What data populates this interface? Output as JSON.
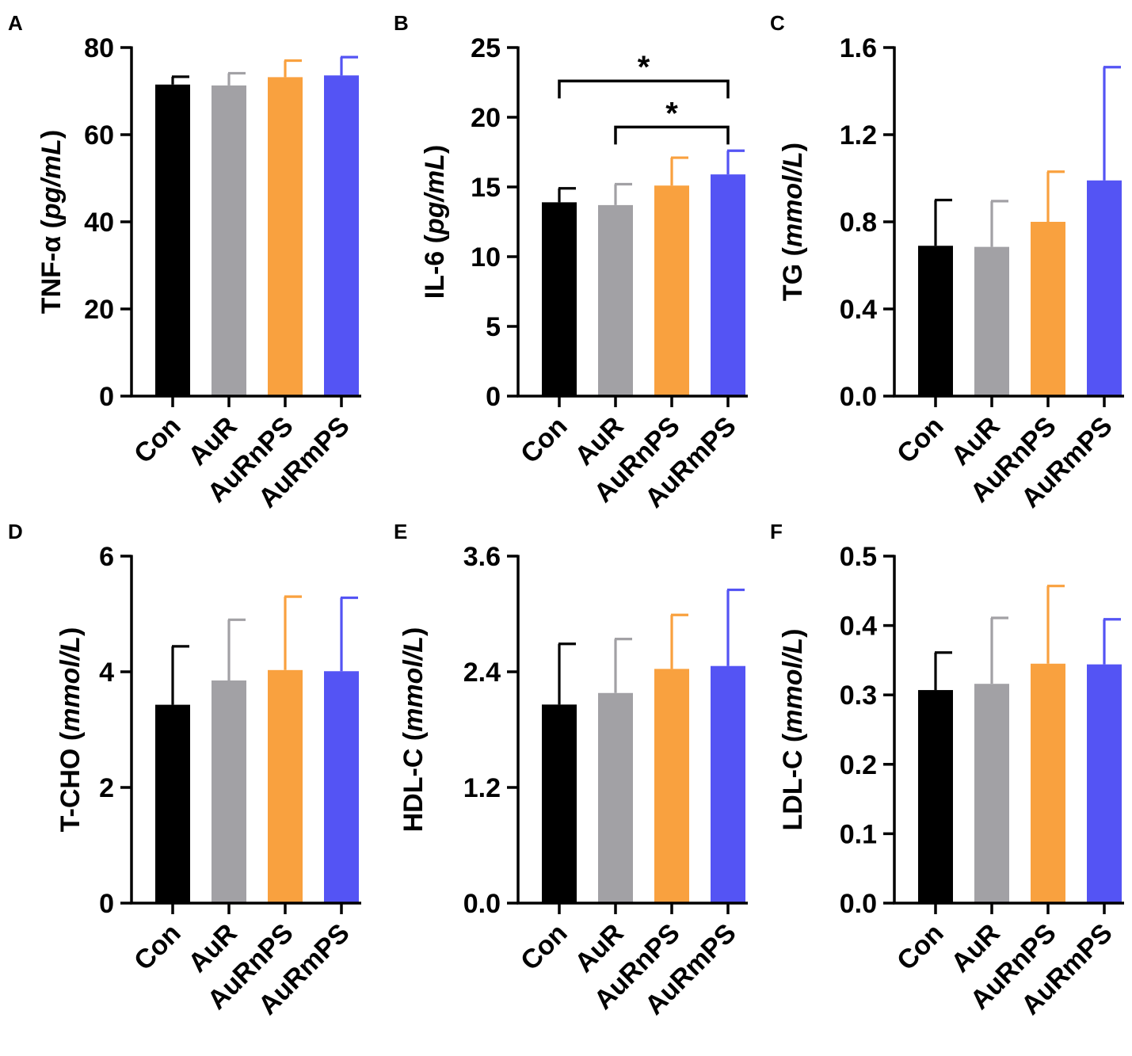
{
  "figure": {
    "categories": [
      "Con",
      "AuR",
      "AuRnPS",
      "AuRmPS"
    ],
    "colors": {
      "Con": "#000000",
      "AuR": "#a2a1a5",
      "AuRnPS": "#f9a13f",
      "AuRmPS": "#5454f4"
    }
  },
  "chart_data": [
    {
      "type": "bar",
      "panel": "A",
      "ylabel_main": "TNF-α",
      "ylabel_unit": "pg/mL",
      "categories": [
        "Con",
        "AuR",
        "AuRnPS",
        "AuRmPS"
      ],
      "values": [
        71.5,
        71.3,
        73.2,
        73.6
      ],
      "errors": [
        1.8,
        2.8,
        3.8,
        4.2
      ],
      "ylim": [
        0,
        80
      ],
      "yticks": [
        0,
        20,
        40,
        60,
        80
      ],
      "ytick_labels": [
        "0",
        "20",
        "40",
        "60",
        "80"
      ],
      "significance": []
    },
    {
      "type": "bar",
      "panel": "B",
      "ylabel_main": "IL-6",
      "ylabel_unit": "pg/mL",
      "categories": [
        "Con",
        "AuR",
        "AuRnPS",
        "AuRmPS"
      ],
      "values": [
        13.9,
        13.7,
        15.1,
        15.9
      ],
      "errors": [
        1.0,
        1.5,
        2.0,
        1.7
      ],
      "ylim": [
        0,
        25
      ],
      "yticks": [
        0,
        5,
        10,
        15,
        20,
        25
      ],
      "ytick_labels": [
        "0",
        "5",
        "10",
        "15",
        "20",
        "25"
      ],
      "significance": [
        {
          "from": 0,
          "to": 3,
          "level": 22.6,
          "label": "*"
        },
        {
          "from": 1,
          "to": 3,
          "level": 19.3,
          "label": "*"
        }
      ]
    },
    {
      "type": "bar",
      "panel": "C",
      "ylabel_main": "TG",
      "ylabel_unit": "mmol/L",
      "categories": [
        "Con",
        "AuR",
        "AuRnPS",
        "AuRmPS"
      ],
      "values": [
        0.69,
        0.685,
        0.8,
        0.99
      ],
      "errors": [
        0.21,
        0.21,
        0.23,
        0.52
      ],
      "ylim": [
        0,
        1.6
      ],
      "yticks": [
        0,
        0.4,
        0.8,
        1.2,
        1.6
      ],
      "ytick_labels": [
        "0.0",
        "0.4",
        "0.8",
        "1.2",
        "1.6"
      ],
      "significance": []
    },
    {
      "type": "bar",
      "panel": "D",
      "ylabel_main": "T-CHO",
      "ylabel_unit": "mmol/L",
      "categories": [
        "Con",
        "AuR",
        "AuRnPS",
        "AuRmPS"
      ],
      "values": [
        3.43,
        3.85,
        4.03,
        4.01
      ],
      "errors": [
        1.01,
        1.05,
        1.27,
        1.27
      ],
      "ylim": [
        0,
        6
      ],
      "yticks": [
        0,
        2,
        4,
        6
      ],
      "ytick_labels": [
        "0",
        "2",
        "4",
        "6"
      ],
      "significance": []
    },
    {
      "type": "bar",
      "panel": "E",
      "ylabel_main": "HDL-C",
      "ylabel_unit": "mmol/L",
      "categories": [
        "Con",
        "AuR",
        "AuRnPS",
        "AuRmPS"
      ],
      "values": [
        2.06,
        2.18,
        2.43,
        2.46
      ],
      "errors": [
        0.63,
        0.56,
        0.56,
        0.79
      ],
      "ylim": [
        0,
        3.6
      ],
      "yticks": [
        0,
        1.2,
        2.4,
        3.6
      ],
      "ytick_labels": [
        "0.0",
        "1.2",
        "2.4",
        "3.6"
      ],
      "significance": []
    },
    {
      "type": "bar",
      "panel": "F",
      "ylabel_main": "LDL-C",
      "ylabel_unit": "mmol/L",
      "categories": [
        "Con",
        "AuR",
        "AuRnPS",
        "AuRmPS"
      ],
      "values": [
        0.307,
        0.316,
        0.345,
        0.344
      ],
      "errors": [
        0.054,
        0.095,
        0.112,
        0.065
      ],
      "ylim": [
        0,
        0.5
      ],
      "yticks": [
        0,
        0.1,
        0.2,
        0.3,
        0.4,
        0.5
      ],
      "ytick_labels": [
        "0.0",
        "0.1",
        "0.2",
        "0.3",
        "0.4",
        "0.5"
      ],
      "significance": []
    }
  ]
}
